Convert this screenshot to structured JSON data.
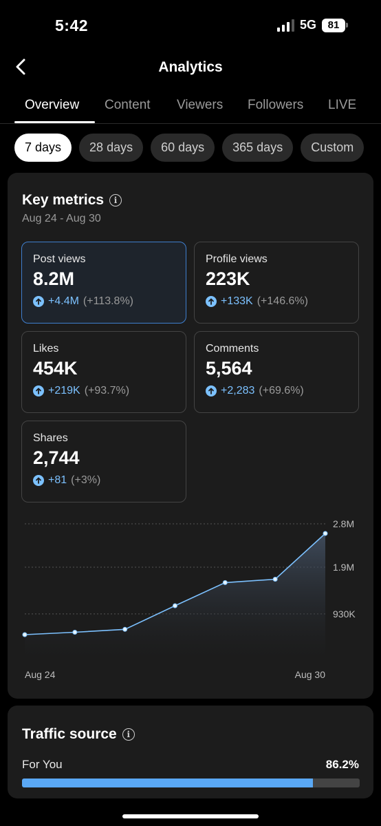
{
  "status": {
    "time": "5:42",
    "network": "5G",
    "battery": "81"
  },
  "header": {
    "title": "Analytics"
  },
  "tabs": [
    {
      "label": "Overview"
    },
    {
      "label": "Content"
    },
    {
      "label": "Viewers"
    },
    {
      "label": "Followers"
    },
    {
      "label": "LIVE"
    }
  ],
  "ranges": [
    {
      "label": "7 days"
    },
    {
      "label": "28 days"
    },
    {
      "label": "60 days"
    },
    {
      "label": "365 days"
    },
    {
      "label": "Custom"
    }
  ],
  "key_metrics": {
    "title": "Key metrics",
    "date_range": "Aug 24 - Aug 30",
    "items": [
      {
        "label": "Post views",
        "value": "8.2M",
        "change": "+4.4M",
        "pct": "(+113.8%)"
      },
      {
        "label": "Profile views",
        "value": "223K",
        "change": "+133K",
        "pct": "(+146.6%)"
      },
      {
        "label": "Likes",
        "value": "454K",
        "change": "+219K",
        "pct": "(+93.7%)"
      },
      {
        "label": "Comments",
        "value": "5,564",
        "change": "+2,283",
        "pct": "(+69.6%)"
      },
      {
        "label": "Shares",
        "value": "2,744",
        "change": "+81",
        "pct": "(+3%)"
      }
    ]
  },
  "chart_data": {
    "type": "area",
    "x": [
      "Aug 24",
      "Aug 25",
      "Aug 26",
      "Aug 27",
      "Aug 28",
      "Aug 29",
      "Aug 30"
    ],
    "values": [
      500000,
      550000,
      610000,
      1100000,
      1580000,
      1650000,
      2600000
    ],
    "x_tick_labels": [
      "Aug 24",
      "Aug 30"
    ],
    "y_tick_labels": [
      "2.8M",
      "1.9M",
      "930K"
    ],
    "y_ticks": [
      2800000,
      1900000,
      930000
    ],
    "ylim": [
      0,
      2800000
    ],
    "grid": true,
    "color": "#7cc1ff"
  },
  "traffic": {
    "title": "Traffic source",
    "items": [
      {
        "label": "For You",
        "pct_label": "86.2%",
        "fraction": 0.862
      }
    ]
  },
  "colors": {
    "accent": "#7cc1ff",
    "bar": "#5aa8f5",
    "card": "#1c1c1c"
  }
}
